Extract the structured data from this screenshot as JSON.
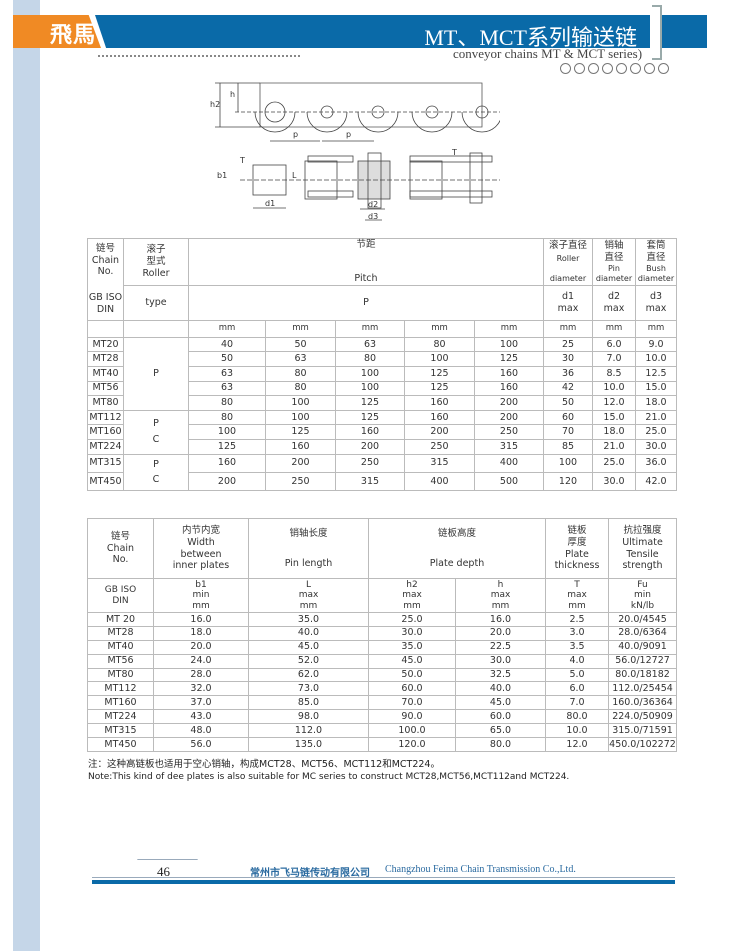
{
  "header": {
    "logo": "飛馬",
    "title": "MT、MCT系列输送链",
    "subtitle": "conveyor chains MT & MCT series)",
    "circle_count": 8,
    "colors": {
      "accent_orange": "#f08a24",
      "accent_blue": "#0a6aa8"
    }
  },
  "diagram": {
    "labels": {
      "h2": "h2",
      "h": "h",
      "p": "p",
      "T": "T",
      "b1": "b1",
      "L": "L",
      "d1": "d1",
      "d2": "d2",
      "d3": "d3"
    }
  },
  "table1": {
    "header": {
      "chain": [
        "链号",
        "Chain",
        "No."
      ],
      "std": [
        "GB ISO",
        "DIN"
      ],
      "roller": [
        "滚子",
        "型式",
        "Roller"
      ],
      "roller_sym": "type",
      "pitch_cn": "节距",
      "pitch_en": "Pitch",
      "pitch_sym": "P",
      "d1": [
        "滚子直径",
        "Roller",
        "diameter"
      ],
      "d2": [
        "销轴",
        "直径",
        "Pin",
        "diameter"
      ],
      "d3": [
        "套筒",
        "直径",
        "Bush",
        "diameter"
      ],
      "d1_sym": [
        "d1",
        "max"
      ],
      "d2_sym": [
        "d2",
        "max"
      ],
      "d3_sym": [
        "d3",
        "max"
      ],
      "unit": "mm"
    },
    "roller_groups": [
      {
        "rows": 5,
        "text": [
          "P"
        ]
      },
      {
        "rows": 3,
        "text": [
          "P",
          "C"
        ]
      },
      {
        "rows": 2,
        "text": [
          "P",
          "C"
        ]
      }
    ],
    "rows": [
      [
        "MT20",
        "40",
        "50",
        "63",
        "80",
        "100",
        "25",
        "6.0",
        "9.0"
      ],
      [
        "MT28",
        "50",
        "63",
        "80",
        "100",
        "125",
        "30",
        "7.0",
        "10.0"
      ],
      [
        "MT40",
        "63",
        "80",
        "100",
        "125",
        "160",
        "36",
        "8.5",
        "12.5"
      ],
      [
        "MT56",
        "63",
        "80",
        "100",
        "125",
        "160",
        "42",
        "10.0",
        "15.0"
      ],
      [
        "MT80",
        "80",
        "100",
        "125",
        "160",
        "200",
        "50",
        "12.0",
        "18.0"
      ],
      [
        "MT112",
        "80",
        "100",
        "125",
        "160",
        "200",
        "60",
        "15.0",
        "21.0"
      ],
      [
        "MT160",
        "100",
        "125",
        "160",
        "200",
        "250",
        "70",
        "18.0",
        "25.0"
      ],
      [
        "MT224",
        "125",
        "160",
        "200",
        "250",
        "315",
        "85",
        "21.0",
        "30.0"
      ],
      [
        "MT315",
        "160",
        "200",
        "250",
        "315",
        "400",
        "100",
        "25.0",
        "36.0"
      ],
      [
        "MT450",
        "200",
        "250",
        "315",
        "400",
        "500",
        "120",
        "30.0",
        "42.0"
      ]
    ]
  },
  "table2": {
    "header": {
      "chain": [
        "链号",
        "Chain",
        "No."
      ],
      "width": [
        "内节内宽",
        "Width",
        "between",
        "inner plates"
      ],
      "pin": [
        "销轴长度",
        "Pin length"
      ],
      "plate": [
        "链板高度",
        "Plate depth"
      ],
      "thick": [
        "链板",
        "厚度",
        "Plate",
        "thickness"
      ],
      "tensile": [
        "抗拉强度",
        "Ultimate",
        "Tensile",
        "strength"
      ],
      "sym": [
        [
          "GB ISO",
          "DIN"
        ],
        [
          "b1",
          "min",
          "mm"
        ],
        [
          "L",
          "max",
          "mm"
        ],
        [
          "h2",
          "max",
          "mm"
        ],
        [
          "h",
          "max",
          "mm"
        ],
        [
          "T",
          "max",
          "mm"
        ],
        [
          "Fu",
          "min",
          "kN/lb"
        ]
      ]
    },
    "rows": [
      [
        "MT 20",
        "16.0",
        "35.0",
        "25.0",
        "16.0",
        "2.5",
        "20.0/4545"
      ],
      [
        "MT28",
        "18.0",
        "40.0",
        "30.0",
        "20.0",
        "3.0",
        "28.0/6364"
      ],
      [
        "MT40",
        "20.0",
        "45.0",
        "35.0",
        "22.5",
        "3.5",
        "40.0/9091"
      ],
      [
        "MT56",
        "24.0",
        "52.0",
        "45.0",
        "30.0",
        "4.0",
        "56.0/12727"
      ],
      [
        "MT80",
        "28.0",
        "62.0",
        "50.0",
        "32.5",
        "5.0",
        "80.0/18182"
      ],
      [
        "MT112",
        "32.0",
        "73.0",
        "60.0",
        "40.0",
        "6.0",
        "112.0/25454"
      ],
      [
        "MT160",
        "37.0",
        "85.0",
        "70.0",
        "45.0",
        "7.0",
        "160.0/36364"
      ],
      [
        "MT224",
        "43.0",
        "98.0",
        "90.0",
        "60.0",
        "80.0",
        "224.0/50909"
      ],
      [
        "MT315",
        "48.0",
        "112.0",
        "100.0",
        "65.0",
        "10.0",
        "315.0/71591"
      ],
      [
        "MT450",
        "56.0",
        "135.0",
        "120.0",
        "80.0",
        "12.0",
        "450.0/102272"
      ]
    ]
  },
  "notes": {
    "cn": "注：这种高链板也适用于空心销轴，构成MCT28、MCT56、MCT112和MCT224。",
    "en": "Note:This kind of dee plates is also suitable for MC series to construct MCT28,MCT56,MCT112and MCT224."
  },
  "footer": {
    "page": "46",
    "company_cn": "常州市飞马链传动有限公司",
    "company_en": "Changzhou Feima Chain Transmission Co.,Ltd."
  }
}
